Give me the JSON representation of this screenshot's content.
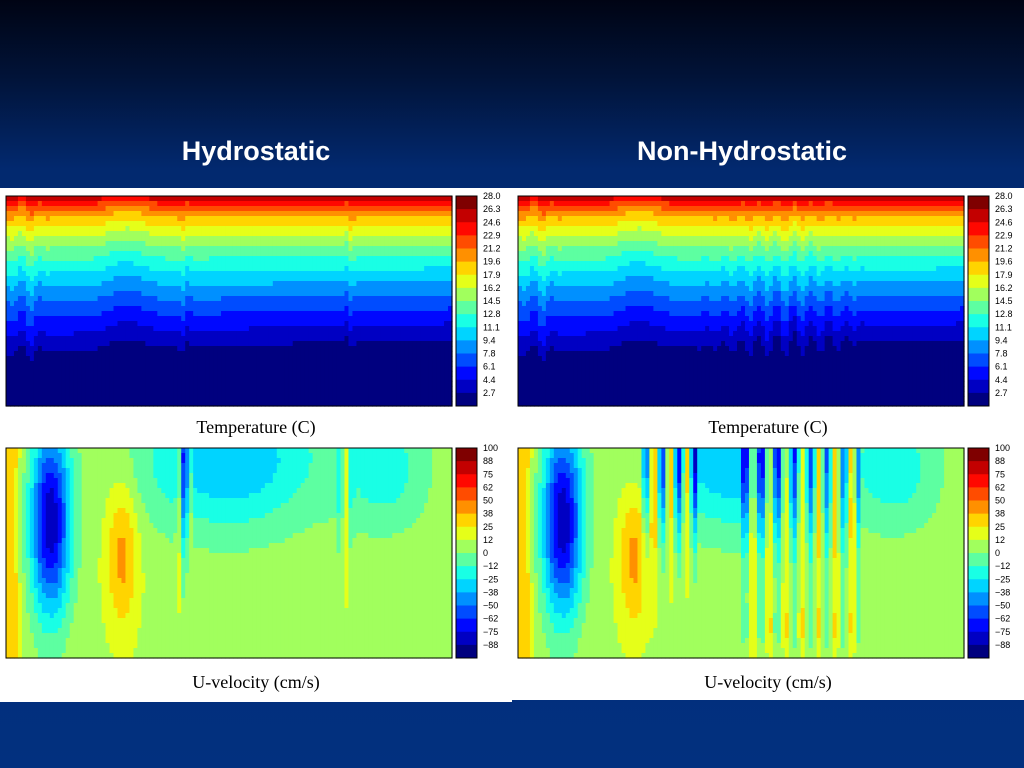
{
  "slide": {
    "left_title": "Hydrostatic",
    "right_title": "Non-Hydrostatic"
  },
  "colors": {
    "jet": [
      "#00007f",
      "#0000ff",
      "#007fff",
      "#00ffff",
      "#7fff7f",
      "#ffff00",
      "#ff7f00",
      "#ff0000",
      "#7f0000"
    ]
  },
  "chart_data": [
    {
      "id": "temp-hydrostatic",
      "type": "heatmap",
      "title": "",
      "caption": "Temperature (C)",
      "colorbar_ticks": [
        "28.0",
        "26.3",
        "24.6",
        "22.9",
        "21.2",
        "19.6",
        "17.9",
        "16.2",
        "14.5",
        "12.8",
        "11.1",
        "9.4",
        "7.8",
        "6.1",
        "4.4",
        "2.7"
      ],
      "value_range": [
        2.7,
        28.0
      ]
    },
    {
      "id": "temp-nonhydrostatic",
      "type": "heatmap",
      "title": "",
      "caption": "Temperature (C)",
      "colorbar_ticks": [
        "28.0",
        "26.3",
        "24.6",
        "22.9",
        "21.2",
        "19.6",
        "17.9",
        "16.2",
        "14.5",
        "12.8",
        "11.1",
        "9.4",
        "7.8",
        "6.1",
        "4.4",
        "2.7"
      ],
      "value_range": [
        2.7,
        28.0
      ]
    },
    {
      "id": "u-hydrostatic",
      "type": "heatmap",
      "title": "",
      "caption": "U-velocity (cm/s)",
      "colorbar_ticks": [
        "100",
        "88",
        "75",
        "62",
        "50",
        "38",
        "25",
        "12",
        "0",
        "−12",
        "−25",
        "−38",
        "−50",
        "−62",
        "−75",
        "−88"
      ],
      "value_range": [
        -88,
        100
      ]
    },
    {
      "id": "u-nonhydrostatic",
      "type": "heatmap",
      "title": "",
      "caption": "U-velocity (cm/s)",
      "colorbar_ticks": [
        "100",
        "88",
        "75",
        "62",
        "50",
        "38",
        "25",
        "12",
        "0",
        "−12",
        "−25",
        "−38",
        "−50",
        "−62",
        "−75",
        "−88"
      ],
      "value_range": [
        -88,
        100
      ]
    }
  ]
}
